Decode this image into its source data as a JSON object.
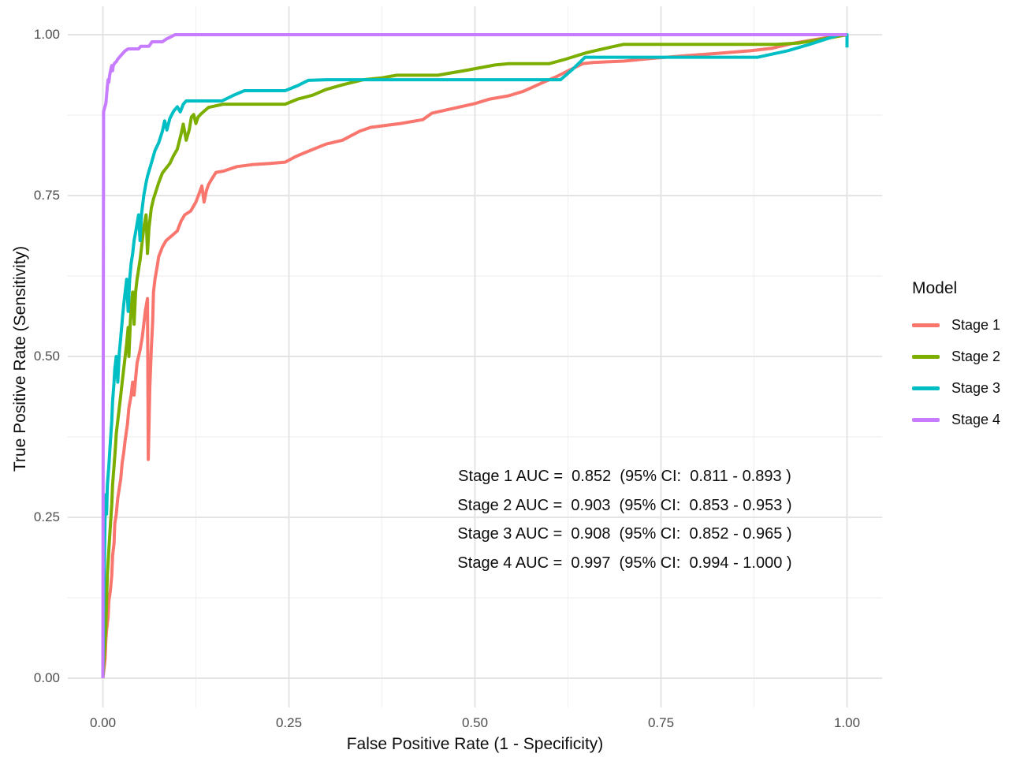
{
  "figure": {
    "background": "#ffffff"
  },
  "chart_data": {
    "type": "line",
    "title": "",
    "xlabel": "False Positive Rate (1 - Specificity)",
    "ylabel": "True Positive Rate (Sensitivity)",
    "xlim": [
      0,
      1
    ],
    "ylim": [
      0,
      1
    ],
    "grid": {
      "major": true,
      "minor": true,
      "major_color": "#e4e4e4",
      "minor_color": "#f0f0f0"
    },
    "x_ticks": {
      "values": [
        0,
        0.25,
        0.5,
        0.75,
        1.0
      ],
      "labels": [
        "0.00",
        "0.25",
        "0.50",
        "0.75",
        "1.00"
      ]
    },
    "y_ticks": {
      "values": [
        0,
        0.25,
        0.5,
        0.75,
        1.0
      ],
      "labels": [
        "0.00",
        "0.25",
        "0.50",
        "0.75",
        "1.00"
      ]
    },
    "legend": {
      "title": "Model",
      "position": "right"
    },
    "series": [
      {
        "name": "Stage 1",
        "color": "#F8766D",
        "auc": 0.852,
        "ci_low": 0.811,
        "ci_high": 0.893,
        "points": [
          [
            0,
            0
          ],
          [
            0.003,
            0.03
          ],
          [
            0.004,
            0.06
          ],
          [
            0.005,
            0.075
          ],
          [
            0.007,
            0.095
          ],
          [
            0.008,
            0.12
          ],
          [
            0.01,
            0.135
          ],
          [
            0.012,
            0.16
          ],
          [
            0.013,
            0.19
          ],
          [
            0.015,
            0.21
          ],
          [
            0.016,
            0.24
          ],
          [
            0.018,
            0.255
          ],
          [
            0.02,
            0.28
          ],
          [
            0.022,
            0.295
          ],
          [
            0.024,
            0.31
          ],
          [
            0.026,
            0.335
          ],
          [
            0.028,
            0.35
          ],
          [
            0.03,
            0.37
          ],
          [
            0.033,
            0.395
          ],
          [
            0.035,
            0.42
          ],
          [
            0.038,
            0.44
          ],
          [
            0.04,
            0.46
          ],
          [
            0.042,
            0.44
          ],
          [
            0.044,
            0.465
          ],
          [
            0.046,
            0.49
          ],
          [
            0.05,
            0.51
          ],
          [
            0.053,
            0.53
          ],
          [
            0.055,
            0.55
          ],
          [
            0.057,
            0.57
          ],
          [
            0.06,
            0.59
          ],
          [
            0.061,
            0.34
          ],
          [
            0.063,
            0.45
          ],
          [
            0.065,
            0.51
          ],
          [
            0.067,
            0.555
          ],
          [
            0.068,
            0.6
          ],
          [
            0.07,
            0.62
          ],
          [
            0.073,
            0.64
          ],
          [
            0.075,
            0.655
          ],
          [
            0.08,
            0.67
          ],
          [
            0.085,
            0.68
          ],
          [
            0.09,
            0.685
          ],
          [
            0.1,
            0.695
          ],
          [
            0.105,
            0.71
          ],
          [
            0.11,
            0.72
          ],
          [
            0.118,
            0.726
          ],
          [
            0.125,
            0.74
          ],
          [
            0.13,
            0.755
          ],
          [
            0.133,
            0.765
          ],
          [
            0.136,
            0.74
          ],
          [
            0.139,
            0.757
          ],
          [
            0.142,
            0.767
          ],
          [
            0.147,
            0.777
          ],
          [
            0.152,
            0.786
          ],
          [
            0.162,
            0.788
          ],
          [
            0.18,
            0.795
          ],
          [
            0.2,
            0.798
          ],
          [
            0.225,
            0.8
          ],
          [
            0.245,
            0.802
          ],
          [
            0.258,
            0.81
          ],
          [
            0.27,
            0.816
          ],
          [
            0.3,
            0.83
          ],
          [
            0.322,
            0.836
          ],
          [
            0.345,
            0.85
          ],
          [
            0.36,
            0.856
          ],
          [
            0.4,
            0.862
          ],
          [
            0.43,
            0.868
          ],
          [
            0.442,
            0.878
          ],
          [
            0.465,
            0.884
          ],
          [
            0.5,
            0.893
          ],
          [
            0.52,
            0.9
          ],
          [
            0.545,
            0.905
          ],
          [
            0.565,
            0.912
          ],
          [
            0.59,
            0.925
          ],
          [
            0.61,
            0.935
          ],
          [
            0.627,
            0.945
          ],
          [
            0.645,
            0.955
          ],
          [
            0.66,
            0.957
          ],
          [
            0.7,
            0.959
          ],
          [
            0.735,
            0.963
          ],
          [
            0.78,
            0.967
          ],
          [
            0.825,
            0.971
          ],
          [
            0.87,
            0.975
          ],
          [
            0.9,
            0.979
          ],
          [
            0.925,
            0.986
          ],
          [
            0.95,
            0.991
          ],
          [
            0.975,
            0.996
          ],
          [
            1,
            1
          ]
        ]
      },
      {
        "name": "Stage 2",
        "color": "#7CAE00",
        "auc": 0.903,
        "ci_low": 0.853,
        "ci_high": 0.953,
        "points": [
          [
            0,
            0
          ],
          [
            0.002,
            0.04
          ],
          [
            0.004,
            0.08
          ],
          [
            0.005,
            0.12
          ],
          [
            0.006,
            0.16
          ],
          [
            0.008,
            0.2
          ],
          [
            0.01,
            0.235
          ],
          [
            0.012,
            0.27
          ],
          [
            0.013,
            0.3
          ],
          [
            0.015,
            0.33
          ],
          [
            0.017,
            0.36
          ],
          [
            0.018,
            0.38
          ],
          [
            0.02,
            0.4
          ],
          [
            0.022,
            0.42
          ],
          [
            0.024,
            0.44
          ],
          [
            0.026,
            0.46
          ],
          [
            0.028,
            0.48
          ],
          [
            0.03,
            0.5
          ],
          [
            0.032,
            0.52
          ],
          [
            0.034,
            0.545
          ],
          [
            0.035,
            0.5
          ],
          [
            0.037,
            0.555
          ],
          [
            0.038,
            0.575
          ],
          [
            0.04,
            0.6
          ],
          [
            0.042,
            0.55
          ],
          [
            0.044,
            0.6
          ],
          [
            0.046,
            0.62
          ],
          [
            0.05,
            0.65
          ],
          [
            0.052,
            0.67
          ],
          [
            0.055,
            0.7
          ],
          [
            0.058,
            0.72
          ],
          [
            0.06,
            0.66
          ],
          [
            0.062,
            0.7
          ],
          [
            0.065,
            0.73
          ],
          [
            0.068,
            0.745
          ],
          [
            0.07,
            0.752
          ],
          [
            0.075,
            0.77
          ],
          [
            0.08,
            0.785
          ],
          [
            0.09,
            0.8
          ],
          [
            0.095,
            0.812
          ],
          [
            0.1,
            0.822
          ],
          [
            0.105,
            0.845
          ],
          [
            0.108,
            0.861
          ],
          [
            0.112,
            0.836
          ],
          [
            0.116,
            0.852
          ],
          [
            0.119,
            0.872
          ],
          [
            0.122,
            0.876
          ],
          [
            0.125,
            0.862
          ],
          [
            0.128,
            0.872
          ],
          [
            0.132,
            0.877
          ],
          [
            0.137,
            0.882
          ],
          [
            0.142,
            0.887
          ],
          [
            0.15,
            0.889
          ],
          [
            0.162,
            0.892
          ],
          [
            0.245,
            0.892
          ],
          [
            0.262,
            0.9
          ],
          [
            0.282,
            0.906
          ],
          [
            0.3,
            0.915
          ],
          [
            0.322,
            0.922
          ],
          [
            0.35,
            0.93
          ],
          [
            0.375,
            0.933
          ],
          [
            0.395,
            0.937
          ],
          [
            0.45,
            0.937
          ],
          [
            0.49,
            0.945
          ],
          [
            0.527,
            0.953
          ],
          [
            0.545,
            0.955
          ],
          [
            0.6,
            0.955
          ],
          [
            0.622,
            0.962
          ],
          [
            0.65,
            0.972
          ],
          [
            0.68,
            0.98
          ],
          [
            0.7,
            0.985
          ],
          [
            0.905,
            0.985
          ],
          [
            0.935,
            0.987
          ],
          [
            0.962,
            0.992
          ],
          [
            1,
            1
          ]
        ]
      },
      {
        "name": "Stage 3",
        "color": "#00BFC4",
        "auc": 0.908,
        "ci_low": 0.852,
        "ci_high": 0.965,
        "points": [
          [
            0,
            0
          ],
          [
            0.001,
            0.1
          ],
          [
            0.002,
            0.18
          ],
          [
            0.003,
            0.25
          ],
          [
            0.004,
            0.285
          ],
          [
            0.005,
            0.255
          ],
          [
            0.006,
            0.3
          ],
          [
            0.008,
            0.33
          ],
          [
            0.01,
            0.365
          ],
          [
            0.012,
            0.4
          ],
          [
            0.013,
            0.43
          ],
          [
            0.015,
            0.46
          ],
          [
            0.016,
            0.48
          ],
          [
            0.018,
            0.5
          ],
          [
            0.02,
            0.46
          ],
          [
            0.022,
            0.505
          ],
          [
            0.024,
            0.53
          ],
          [
            0.026,
            0.555
          ],
          [
            0.028,
            0.58
          ],
          [
            0.03,
            0.6
          ],
          [
            0.032,
            0.62
          ],
          [
            0.034,
            0.57
          ],
          [
            0.036,
            0.62
          ],
          [
            0.038,
            0.645
          ],
          [
            0.04,
            0.66
          ],
          [
            0.042,
            0.68
          ],
          [
            0.045,
            0.7
          ],
          [
            0.048,
            0.72
          ],
          [
            0.05,
            0.68
          ],
          [
            0.052,
            0.722
          ],
          [
            0.055,
            0.75
          ],
          [
            0.058,
            0.77
          ],
          [
            0.06,
            0.78
          ],
          [
            0.065,
            0.8
          ],
          [
            0.07,
            0.82
          ],
          [
            0.075,
            0.832
          ],
          [
            0.08,
            0.85
          ],
          [
            0.083,
            0.866
          ],
          [
            0.086,
            0.852
          ],
          [
            0.09,
            0.87
          ],
          [
            0.095,
            0.881
          ],
          [
            0.1,
            0.888
          ],
          [
            0.104,
            0.88
          ],
          [
            0.108,
            0.892
          ],
          [
            0.112,
            0.897
          ],
          [
            0.16,
            0.897
          ],
          [
            0.176,
            0.906
          ],
          [
            0.19,
            0.913
          ],
          [
            0.245,
            0.913
          ],
          [
            0.262,
            0.921
          ],
          [
            0.276,
            0.929
          ],
          [
            0.3,
            0.93
          ],
          [
            0.615,
            0.93
          ],
          [
            0.632,
            0.947
          ],
          [
            0.648,
            0.965
          ],
          [
            0.88,
            0.965
          ],
          [
            0.92,
            0.975
          ],
          [
            0.95,
            0.985
          ],
          [
            0.99,
            1
          ],
          [
            1,
            1
          ],
          [
            1,
            0.98
          ]
        ]
      },
      {
        "name": "Stage 4",
        "color": "#C77CFF",
        "auc": 0.997,
        "ci_low": 0.994,
        "ci_high": 1.0,
        "points": [
          [
            0,
            0
          ],
          [
            0.001,
            0.88
          ],
          [
            0.002,
            0.885
          ],
          [
            0.004,
            0.893
          ],
          [
            0.005,
            0.905
          ],
          [
            0.006,
            0.92
          ],
          [
            0.007,
            0.93
          ],
          [
            0.008,
            0.926
          ],
          [
            0.009,
            0.936
          ],
          [
            0.01,
            0.942
          ],
          [
            0.011,
            0.948
          ],
          [
            0.012,
            0.952
          ],
          [
            0.013,
            0.944
          ],
          [
            0.014,
            0.952
          ],
          [
            0.016,
            0.956
          ],
          [
            0.018,
            0.958
          ],
          [
            0.02,
            0.962
          ],
          [
            0.023,
            0.966
          ],
          [
            0.026,
            0.97
          ],
          [
            0.03,
            0.975
          ],
          [
            0.034,
            0.978
          ],
          [
            0.048,
            0.978
          ],
          [
            0.051,
            0.982
          ],
          [
            0.062,
            0.982
          ],
          [
            0.066,
            0.989
          ],
          [
            0.08,
            0.989
          ],
          [
            0.085,
            0.993
          ],
          [
            0.09,
            0.996
          ],
          [
            0.097,
            1
          ],
          [
            1,
            1
          ]
        ]
      }
    ]
  },
  "annotations": {
    "lines": [
      "Stage 1 AUC =  0.852  (95% CI:  0.811 - 0.893 )",
      "Stage 2 AUC =  0.903  (95% CI:  0.853 - 0.953 )",
      "Stage 3 AUC =  0.908  (95% CI:  0.852 - 0.965 )",
      "Stage 4 AUC =  0.997  (95% CI:  0.994 - 1.000 )"
    ]
  }
}
